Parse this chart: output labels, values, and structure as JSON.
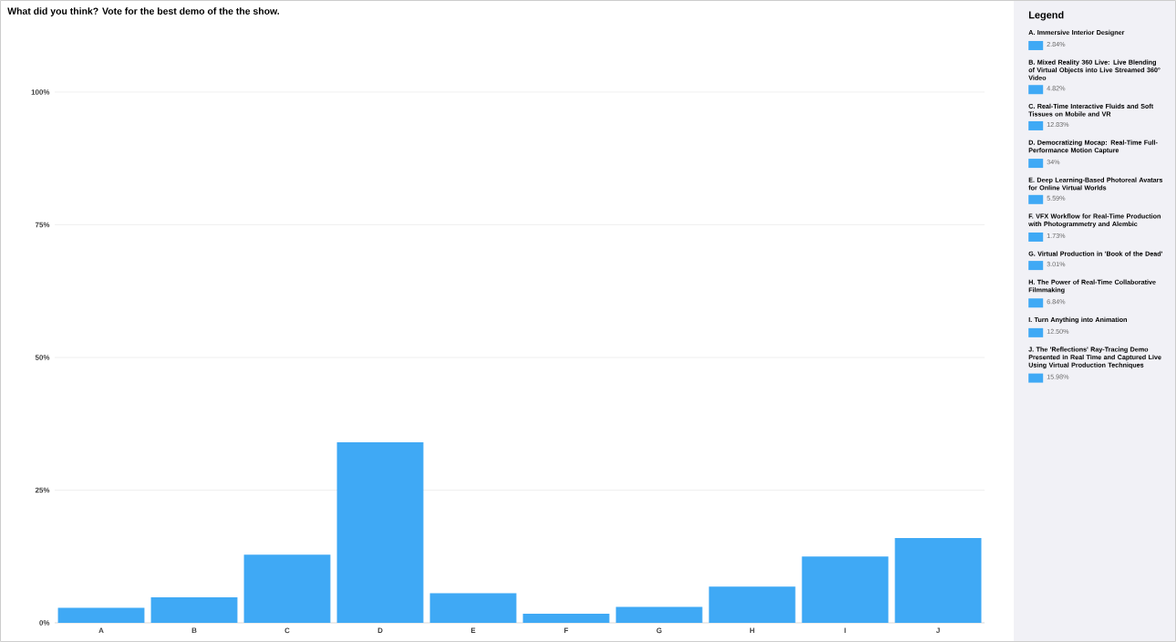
{
  "chart_data": {
    "type": "bar",
    "title": "What did you think? Vote for the best demo of the the show.",
    "categories": [
      "A",
      "B",
      "C",
      "D",
      "E",
      "F",
      "G",
      "H",
      "I",
      "J"
    ],
    "values": [
      2.84,
      4.82,
      12.83,
      34,
      5.59,
      1.73,
      3.01,
      6.84,
      12.5,
      15.98
    ],
    "color": "#3fa9f5",
    "ylim": [
      0,
      100
    ],
    "yticks": [
      {
        "value": 0,
        "label": "0%"
      },
      {
        "value": 25,
        "label": "25%"
      },
      {
        "value": 50,
        "label": "50%"
      },
      {
        "value": 75,
        "label": "75%"
      },
      {
        "value": 100,
        "label": "100%"
      }
    ],
    "grid": "y",
    "annotations": [
      "Legend",
      "A. Immersive Interior Designer",
      "2.84%",
      "B. Mixed Reality 360 Live: Live Blending of Virtual Objects into Live Streamed 360° Video",
      "4.82%",
      "C. Real-Time Interactive Fluids and Soft Tissues on Mobile and VR",
      "12.83%",
      "D. Democratizing Mocap: Real-Time Full-Performance Motion Capture",
      "34%",
      "E. Deep Learning-Based Photoreal Avatars for Online Virtual Worlds",
      "5.59%",
      "F. VFX Workflow for Real-Time Production with Photogrammetry and Alembic",
      "1.73%",
      "G. Virtual Production in 'Book of the Dead'",
      "3.01%",
      "H. The Power of Real-Time Collaborative Filmmaking",
      "6.84%",
      "I. Turn Anything into Animation",
      "12.50%",
      "J. The 'Reflections' Ray-Tracing Demo Presented in Real Time and Captured Live Using Virtual Production Techniques",
      "15.98%"
    ]
  }
}
